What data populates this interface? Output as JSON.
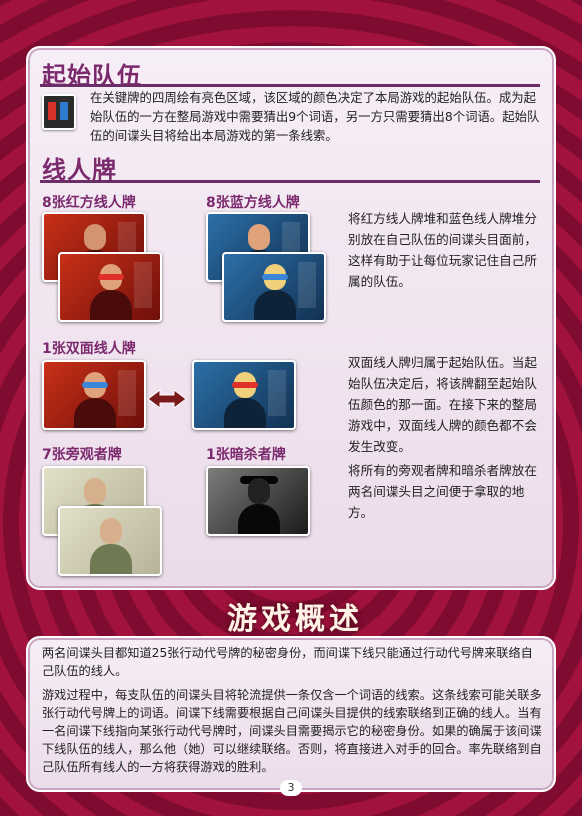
{
  "page_number": "3",
  "starting_team": {
    "title": "起始队伍",
    "text": "在关键牌的四周绘有亮色区域，该区域的颜色决定了本局游戏的起始队伍。成为起始队伍的一方在整局游戏中需要猜出9个词语，另一方只需要猜出8个词语。起始队伍的间谍头目将给出本局游戏的第一条线索。"
  },
  "agents": {
    "title": "线人牌",
    "red_label": "8张红方线人牌",
    "blue_label": "8张蓝方线人牌",
    "team_text": "将红方线人牌堆和蓝色线人牌堆分别放在自己队伍的间谍头目面前，这样有助于让每位玩家记住自己所属的队伍。",
    "double_label": "1张双面线人牌",
    "double_text": "双面线人牌归属于起始队伍。当起始队伍决定后，将该牌翻至起始队伍颜色的那一面。在接下来的整局游戏中，双面线人牌的颜色都不会发生改变。",
    "bystander_label": "7张旁观者牌",
    "assassin_label": "1张暗杀者牌",
    "bystander_text": "将所有的旁观者牌和暗杀者牌放在两名间谍头目之间便于拿取的地方。"
  },
  "overview": {
    "title": "游戏概述",
    "p1": "两名间谍头目都知道25张行动代号牌的秘密身份，而间谍下线只能通过行动代号牌来联络自己队伍的线人。",
    "p2": "游戏过程中，每支队伍的间谍头目将轮流提供一条仅含一个词语的线索。这条线索可能关联多张行动代号牌上的词语。间谍下线需要根据自己间谍头目提供的线索联络到正确的线人。当有一名间谍下线指向某张行动代号牌时，间谍头目需要揭示它的秘密身份。如果的确属于该间谍下线队伍的线人，那么他（她）可以继续联络。否则，将直接进入对手的回合。率先联络到自己队伍所有线人的一方将获得游戏的胜利。"
  }
}
